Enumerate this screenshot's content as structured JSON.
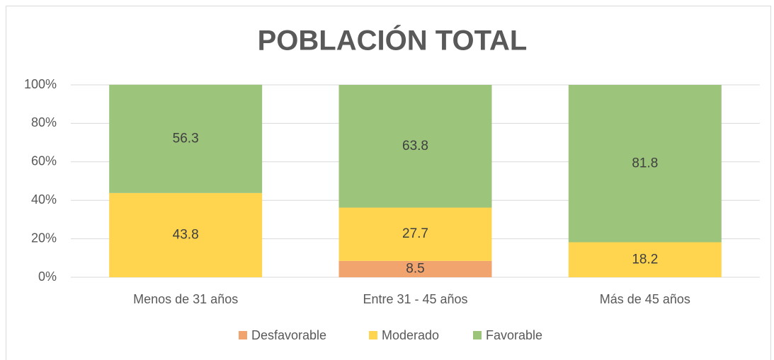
{
  "chart_data": {
    "type": "stacked_bar",
    "title": "POBLACIÓN TOTAL",
    "categories": [
      "Menos de 31 años",
      "Entre 31 - 45 años",
      "Más de 45 años"
    ],
    "series": [
      {
        "name": "Desfavorable",
        "color": "#f2a46e",
        "values": [
          null,
          8.5,
          null
        ]
      },
      {
        "name": "Moderado",
        "color": "#ffd44f",
        "values": [
          43.8,
          27.7,
          18.2
        ]
      },
      {
        "name": "Favorable",
        "color": "#9cc47b",
        "values": [
          56.3,
          63.8,
          81.8
        ]
      }
    ],
    "ylim": [
      0,
      100
    ],
    "yticks": [
      {
        "value": 0,
        "label": "0%"
      },
      {
        "value": 20,
        "label": "20%"
      },
      {
        "value": 40,
        "label": "40%"
      },
      {
        "value": 60,
        "label": "60%"
      },
      {
        "value": 80,
        "label": "80%"
      },
      {
        "value": 100,
        "label": "100%"
      }
    ],
    "grid": true,
    "legend": "bottom"
  }
}
